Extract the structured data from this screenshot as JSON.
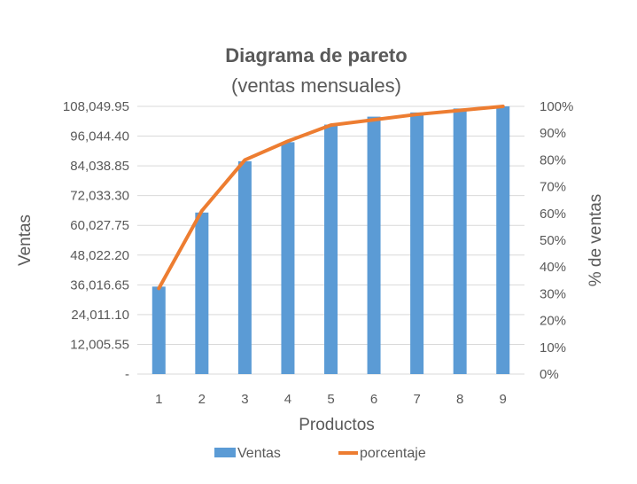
{
  "chart_data": {
    "type": "bar+line",
    "title": "Diagrama de pareto",
    "subtitle": "(ventas mensuales)",
    "xlabel": "Productos",
    "ylabel": "Ventas",
    "y2label": "% de ventas",
    "categories": [
      "1",
      "2",
      "3",
      "4",
      "5",
      "6",
      "7",
      "8",
      "9"
    ],
    "ylim": [
      0,
      108049.95
    ],
    "yticks": [
      0,
      12005.55,
      24011.1,
      36016.65,
      48022.2,
      60027.75,
      72033.3,
      84038.85,
      96044.4,
      108049.95
    ],
    "ytick_labels": [
      "-",
      "12,005.55",
      "24,011.10",
      "36,016.65",
      "48,022.20",
      "60,027.75",
      "72,033.30",
      "84,038.85",
      "96,044.40",
      "108,049.95"
    ],
    "y2lim": [
      0,
      1
    ],
    "y2tick_labels": [
      "0%",
      "10%",
      "20%",
      "30%",
      "40%",
      "50%",
      "60%",
      "70%",
      "80%",
      "90%",
      "100%"
    ],
    "series": [
      {
        "name": "Ventas",
        "type": "bar",
        "color": "#5b9bd5",
        "values": [
          35300,
          65200,
          85900,
          93600,
          100700,
          103900,
          105600,
          107200,
          108049.95
        ]
      },
      {
        "name": "porcentaje",
        "type": "line",
        "axis": "secondary",
        "color": "#ed7d31",
        "values": [
          0.32,
          0.61,
          0.8,
          0.87,
          0.93,
          0.95,
          0.97,
          0.985,
          1.0
        ]
      }
    ],
    "legend_position": "bottom",
    "grid": true
  }
}
